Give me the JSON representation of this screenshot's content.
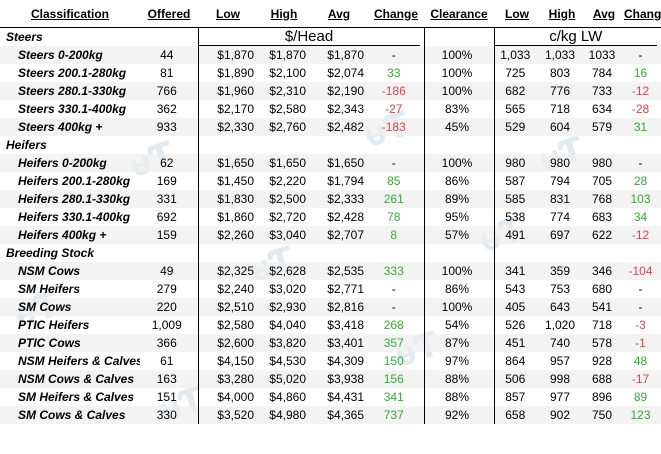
{
  "headers": {
    "classification": "Classification",
    "offered": "Offered",
    "low": "Low",
    "high": "High",
    "avg": "Avg",
    "change": "Change",
    "clearance": "Clearance",
    "low2": "Low",
    "high2": "High",
    "avg2": "Avg",
    "change2": "Change"
  },
  "units": {
    "head": "$/Head",
    "kg": "c/kg LW"
  },
  "sections": [
    {
      "label": "Steers",
      "rows": [
        {
          "name": "Steers 0-200kg",
          "offered": "44",
          "low": "$1,870",
          "high": "$1,870",
          "avg": "$1,870",
          "change": "-",
          "clearance": "100%",
          "low2": "1,033",
          "high2": "1,033",
          "avg2": "1033",
          "change2": "-"
        },
        {
          "name": "Steers 200.1-280kg",
          "offered": "81",
          "low": "$1,890",
          "high": "$2,100",
          "avg": "$2,074",
          "change": "33",
          "clearance": "100%",
          "low2": "725",
          "high2": "803",
          "avg2": "784",
          "change2": "16"
        },
        {
          "name": "Steers 280.1-330kg",
          "offered": "766",
          "low": "$1,960",
          "high": "$2,310",
          "avg": "$2,190",
          "change": "-186",
          "clearance": "100%",
          "low2": "682",
          "high2": "776",
          "avg2": "733",
          "change2": "-12"
        },
        {
          "name": "Steers 330.1-400kg",
          "offered": "362",
          "low": "$2,170",
          "high": "$2,580",
          "avg": "$2,343",
          "change": "-27",
          "clearance": "83%",
          "low2": "565",
          "high2": "718",
          "avg2": "634",
          "change2": "-28"
        },
        {
          "name": "Steers 400kg +",
          "offered": "933",
          "low": "$2,330",
          "high": "$2,760",
          "avg": "$2,482",
          "change": "-183",
          "clearance": "45%",
          "low2": "529",
          "high2": "604",
          "avg2": "579",
          "change2": "31"
        }
      ]
    },
    {
      "label": "Heifers",
      "rows": [
        {
          "name": "Heifers 0-200kg",
          "offered": "62",
          "low": "$1,650",
          "high": "$1,650",
          "avg": "$1,650",
          "change": "-",
          "clearance": "100%",
          "low2": "980",
          "high2": "980",
          "avg2": "980",
          "change2": "-"
        },
        {
          "name": "Heifers 200.1-280kg",
          "offered": "169",
          "low": "$1,450",
          "high": "$2,220",
          "avg": "$1,794",
          "change": "85",
          "clearance": "86%",
          "low2": "587",
          "high2": "794",
          "avg2": "705",
          "change2": "28"
        },
        {
          "name": "Heifers 280.1-330kg",
          "offered": "331",
          "low": "$1,830",
          "high": "$2,500",
          "avg": "$2,333",
          "change": "261",
          "clearance": "89%",
          "low2": "585",
          "high2": "831",
          "avg2": "768",
          "change2": "103"
        },
        {
          "name": "Heifers 330.1-400kg",
          "offered": "692",
          "low": "$1,860",
          "high": "$2,720",
          "avg": "$2,428",
          "change": "78",
          "clearance": "95%",
          "low2": "538",
          "high2": "774",
          "avg2": "683",
          "change2": "34"
        },
        {
          "name": "Heifers 400kg +",
          "offered": "159",
          "low": "$2,260",
          "high": "$3,040",
          "avg": "$2,707",
          "change": "8",
          "clearance": "57%",
          "low2": "491",
          "high2": "697",
          "avg2": "622",
          "change2": "-12"
        }
      ]
    },
    {
      "label": "Breeding Stock",
      "rows": [
        {
          "name": "NSM Cows",
          "offered": "49",
          "low": "$2,325",
          "high": "$2,628",
          "avg": "$2,535",
          "change": "333",
          "clearance": "100%",
          "low2": "341",
          "high2": "359",
          "avg2": "346",
          "change2": "-104"
        },
        {
          "name": "SM Heifers",
          "offered": "279",
          "low": "$2,240",
          "high": "$3,020",
          "avg": "$2,771",
          "change": "-",
          "clearance": "86%",
          "low2": "543",
          "high2": "753",
          "avg2": "680",
          "change2": "-"
        },
        {
          "name": "SM Cows",
          "offered": "220",
          "low": "$2,510",
          "high": "$2,930",
          "avg": "$2,816",
          "change": "-",
          "clearance": "100%",
          "low2": "405",
          "high2": "643",
          "avg2": "541",
          "change2": "-"
        },
        {
          "name": "PTIC Heifers",
          "offered": "1,009",
          "low": "$2,580",
          "high": "$4,040",
          "avg": "$3,418",
          "change": "268",
          "clearance": "54%",
          "low2": "526",
          "high2": "1,020",
          "avg2": "718",
          "change2": "-3"
        },
        {
          "name": "PTIC Cows",
          "offered": "366",
          "low": "$2,600",
          "high": "$3,820",
          "avg": "$3,401",
          "change": "357",
          "clearance": "87%",
          "low2": "451",
          "high2": "740",
          "avg2": "578",
          "change2": "-1"
        },
        {
          "name": "NSM Heifers & Calves",
          "offered": "61",
          "low": "$4,150",
          "high": "$4,530",
          "avg": "$4,309",
          "change": "150",
          "clearance": "97%",
          "low2": "864",
          "high2": "957",
          "avg2": "928",
          "change2": "48"
        },
        {
          "name": "NSM Cows & Calves",
          "offered": "163",
          "low": "$3,280",
          "high": "$5,020",
          "avg": "$3,938",
          "change": "156",
          "clearance": "88%",
          "low2": "506",
          "high2": "998",
          "avg2": "688",
          "change2": "-17"
        },
        {
          "name": "SM Heifers & Calves",
          "offered": "151",
          "low": "$4,000",
          "high": "$4,860",
          "avg": "$4,431",
          "change": "341",
          "clearance": "88%",
          "low2": "857",
          "high2": "977",
          "avg2": "896",
          "change2": "89"
        },
        {
          "name": "SM Cows & Calves",
          "offered": "330",
          "low": "$3,520",
          "high": "$4,980",
          "avg": "$4,365",
          "change": "737",
          "clearance": "92%",
          "low2": "658",
          "high2": "902",
          "avg2": "750",
          "change2": "123"
        }
      ]
    }
  ],
  "colors": {
    "positive": "#33aa33",
    "negative": "#e0414a",
    "watermark": "#dde7ef"
  }
}
